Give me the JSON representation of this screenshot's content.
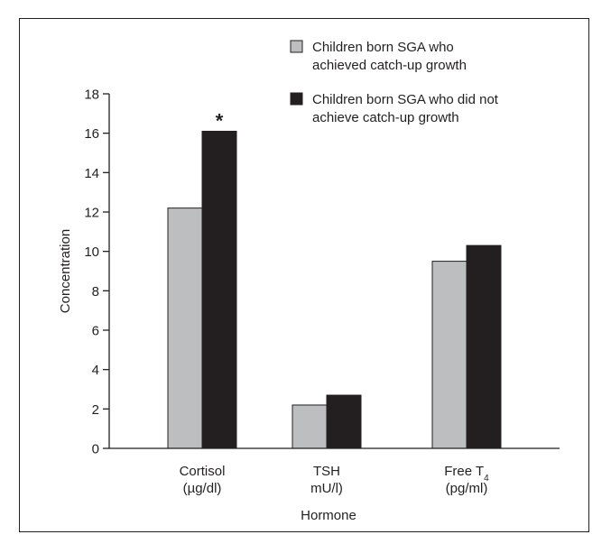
{
  "chart_data": {
    "type": "bar",
    "categories": [
      {
        "line1": "Cortisol",
        "line2": "(µg/dl)"
      },
      {
        "line1": "TSH",
        "line2": "mU/l)"
      },
      {
        "line1": "Free T",
        "sub": "4",
        "line2": "(pg/ml)"
      }
    ],
    "series": [
      {
        "name": "Children born SGA who achieved catch-up growth",
        "color": "#bcbec0",
        "values": [
          12.2,
          2.2,
          9.5
        ]
      },
      {
        "name": "Children born SGA who did not achieve catch-up growth",
        "color": "#231f20",
        "values": [
          16.1,
          2.7,
          10.3
        ]
      }
    ],
    "legend_lines": [
      [
        "Children born SGA who",
        "achieved catch-up growth"
      ],
      [
        "Children born SGA who did not",
        "achieve catch-up growth"
      ]
    ],
    "ylabel": "Concentration",
    "xlabel": "Hormone",
    "ylim": [
      0,
      18
    ],
    "yticks": [
      0,
      2,
      4,
      6,
      8,
      10,
      12,
      14,
      16,
      18
    ],
    "annotations": [
      {
        "text": "*",
        "category_index": 0,
        "series_index": 1
      }
    ],
    "legend_position": "top-right",
    "grid": false
  }
}
